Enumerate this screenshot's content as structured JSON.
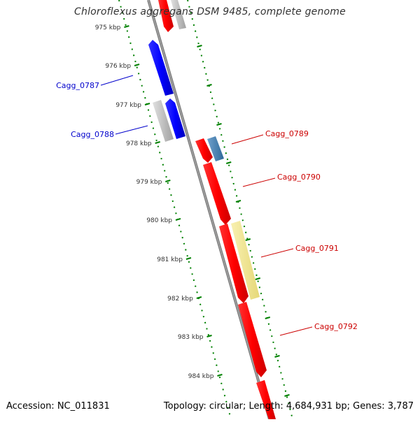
{
  "title": "Chloroflexus aggregans DSM 9485, complete genome",
  "accession_text": "Accession: NC_011831",
  "summary_text": "Topology: circular; Length: 4,684,931 bp; Genes: 3,787",
  "kbp_labels": [
    "975 kbp",
    "976 kbp",
    "977 kbp",
    "978 kbp",
    "979 kbp",
    "980 kbp",
    "981 kbp",
    "982 kbp",
    "983 kbp",
    "984 kbp"
  ],
  "gene_labels": [
    {
      "name": "Cagg_0787",
      "color": "#0000cc"
    },
    {
      "name": "Cagg_0788",
      "color": "#0000cc"
    },
    {
      "name": "Cagg_0789",
      "color": "#cc0000"
    },
    {
      "name": "Cagg_0790",
      "color": "#cc0000"
    },
    {
      "name": "Cagg_0791",
      "color": "#cc0000"
    },
    {
      "name": "Cagg_0792",
      "color": "#cc0000"
    }
  ],
  "colors": {
    "forward_red": "#ff0000",
    "reverse_blue": "#0000ff",
    "grey_gene": "#c0c0c0",
    "steel_blue_gene": "#4682b4",
    "khaki_gene": "#f0e68c",
    "backbone": "#808080",
    "tick_green": "#008000"
  }
}
